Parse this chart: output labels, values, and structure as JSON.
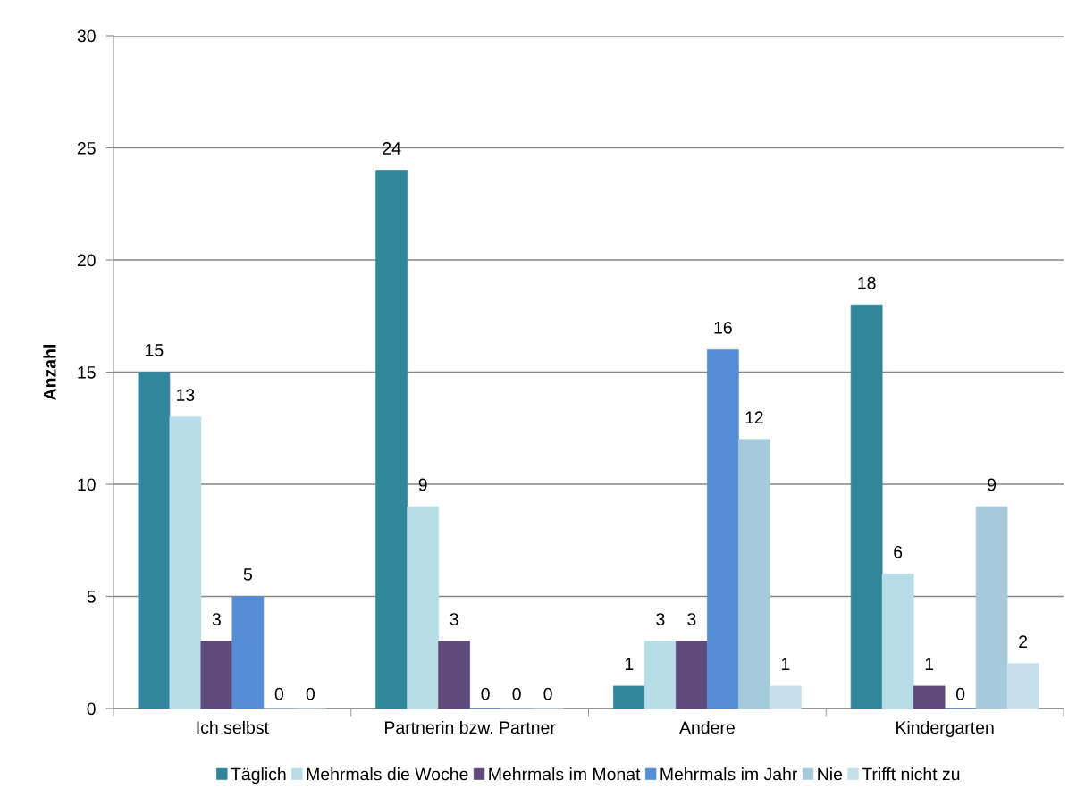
{
  "chart_data": {
    "type": "bar",
    "ylabel": "Anzahl",
    "categories": [
      "Ich selbst",
      "Partnerin bzw. Partner",
      "Andere",
      "Kindergarten"
    ],
    "series": [
      {
        "name": "Täglich",
        "color": "#31869b",
        "values": [
          15,
          24,
          1,
          18
        ]
      },
      {
        "name": "Mehrmals die Woche",
        "color": "#b7dee8",
        "values": [
          13,
          9,
          3,
          6
        ]
      },
      {
        "name": "Mehrmals im Monat",
        "color": "#604a7b",
        "values": [
          3,
          3,
          3,
          1
        ]
      },
      {
        "name": "Mehrmals im Jahr",
        "color": "#558ed5",
        "values": [
          5,
          0,
          16,
          0
        ]
      },
      {
        "name": "Nie",
        "color": "#a5cbdb",
        "values": [
          0,
          0,
          12,
          9
        ]
      },
      {
        "name": "Trifft nicht zu",
        "color": "#c6dfe9",
        "values": [
          0,
          0,
          1,
          2
        ]
      }
    ],
    "ylim": [
      0,
      30
    ],
    "yticks": [
      0,
      5,
      10,
      15,
      20,
      25,
      30
    ],
    "grid": "y",
    "legend": "bottom",
    "data_labels": true
  }
}
